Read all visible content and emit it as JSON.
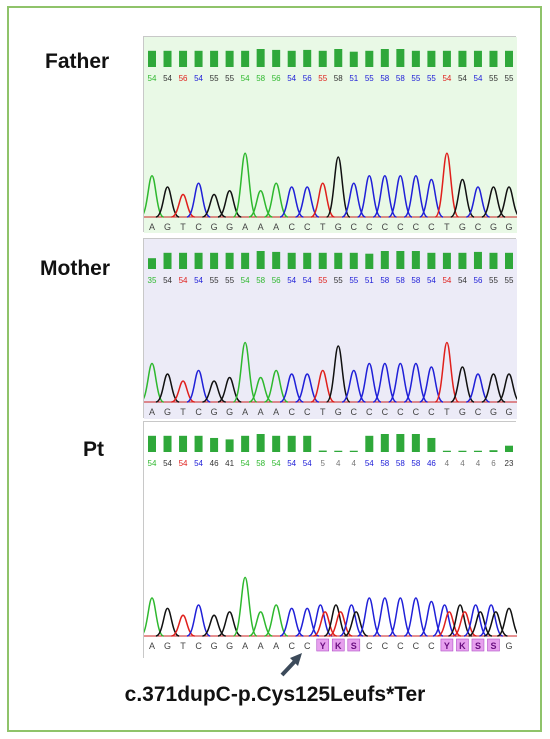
{
  "colors": {
    "A": "#2eb82e",
    "T": "#e0201c",
    "C": "#2020d8",
    "G": "#111111",
    "bar": "#2fa83a",
    "mixed_base_bg": "#e7a0ee",
    "mixed_base_text": "#6a0f80",
    "father_bg": "#e9f9e6",
    "mother_bg": "#ecebf7",
    "pt_bg": "#ffffff"
  },
  "panels": [
    {
      "label": "Father",
      "bases": [
        "A",
        "G",
        "T",
        "C",
        "G",
        "G",
        "A",
        "A",
        "A",
        "C",
        "C",
        "T",
        "G",
        "C",
        "C",
        "C",
        "C",
        "C",
        "C",
        "T",
        "G",
        "C",
        "G",
        "G"
      ],
      "quality": [
        "54",
        "54",
        "56",
        "54",
        "55",
        "55",
        "54",
        "58",
        "56",
        "54",
        "56",
        "55",
        "58",
        "51",
        "55",
        "58",
        "58",
        "55",
        "55",
        "54",
        "54",
        "54",
        "55",
        "55"
      ],
      "bar_levels": [
        0.9,
        0.9,
        0.9,
        0.9,
        0.9,
        0.9,
        0.9,
        1,
        0.95,
        0.9,
        0.95,
        0.9,
        1,
        0.85,
        0.9,
        1,
        1,
        0.9,
        0.9,
        0.9,
        0.9,
        0.9,
        0.9,
        0.9
      ],
      "mixed": []
    },
    {
      "label": "Mother",
      "bases": [
        "A",
        "G",
        "T",
        "C",
        "G",
        "G",
        "A",
        "A",
        "A",
        "C",
        "C",
        "T",
        "G",
        "C",
        "C",
        "C",
        "C",
        "C",
        "C",
        "T",
        "G",
        "C",
        "G",
        "G"
      ],
      "quality": [
        "35",
        "54",
        "54",
        "54",
        "55",
        "55",
        "54",
        "58",
        "56",
        "54",
        "54",
        "55",
        "55",
        "55",
        "51",
        "58",
        "58",
        "58",
        "54",
        "54",
        "54",
        "56",
        "55",
        "55"
      ],
      "bar_levels": [
        0.6,
        0.9,
        0.9,
        0.9,
        0.9,
        0.9,
        0.9,
        1,
        0.95,
        0.9,
        0.9,
        0.9,
        0.9,
        0.9,
        0.85,
        1,
        1,
        1,
        0.9,
        0.9,
        0.9,
        0.95,
        0.9,
        0.9
      ],
      "mixed": []
    },
    {
      "label": "Pt",
      "bases": [
        "A",
        "G",
        "T",
        "C",
        "G",
        "G",
        "A",
        "A",
        "A",
        "C",
        "C",
        "Y",
        "K",
        "S",
        "C",
        "C",
        "C",
        "C",
        "C",
        "Y",
        "K",
        "S",
        "S",
        "G"
      ],
      "quality": [
        "54",
        "54",
        "54",
        "54",
        "46",
        "41",
        "54",
        "58",
        "54",
        "54",
        "54",
        "5",
        "4",
        "4",
        "54",
        "58",
        "58",
        "58",
        "46",
        "4",
        "4",
        "4",
        "6",
        "23"
      ],
      "bar_levels": [
        0.9,
        0.9,
        0.9,
        0.9,
        0.78,
        0.7,
        0.9,
        1,
        0.9,
        0.9,
        0.9,
        0.08,
        0.07,
        0.07,
        0.9,
        1,
        1,
        1,
        0.78,
        0.07,
        0.07,
        0.07,
        0.1,
        0.35
      ],
      "mixed": [
        11,
        12,
        13,
        19,
        20,
        21,
        22
      ]
    }
  ],
  "variant_label": "c.371dupC-p.Cys125Leufs*Ter"
}
